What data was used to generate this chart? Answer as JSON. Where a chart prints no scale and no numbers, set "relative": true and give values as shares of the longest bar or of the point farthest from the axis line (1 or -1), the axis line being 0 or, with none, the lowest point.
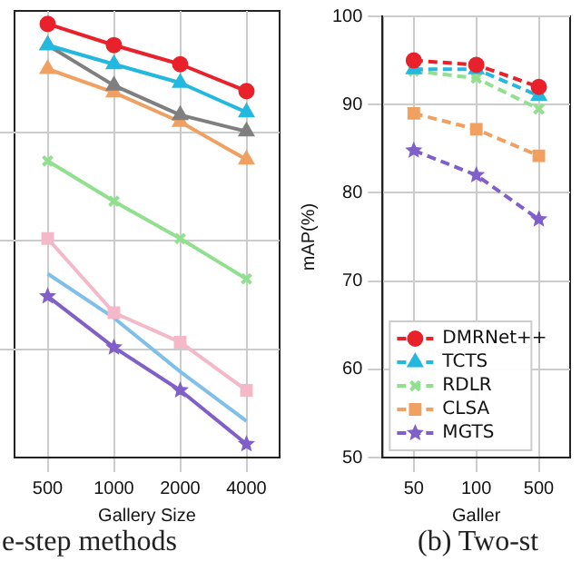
{
  "chart_data": [
    {
      "type": "line",
      "relative": true,
      "xlabel": "Gallery Size",
      "categories": [
        "500",
        "1000",
        "2000",
        "4000"
      ],
      "grid": true,
      "legend": false,
      "line_style": "solid",
      "annotations": [
        "e-step methods"
      ],
      "series": [
        {
          "color": "#e8212a",
          "marker": "circle",
          "values": [
            1,
            0.951,
            0.907,
            0.845
          ]
        },
        {
          "color": "#22b8e0",
          "marker": "triangle",
          "values": [
            0.951,
            0.907,
            0.864,
            0.796
          ]
        },
        {
          "color": "#7f7f7f",
          "marker": "triangle",
          "values": [
            0.951,
            0.858,
            0.79,
            0.752
          ]
        },
        {
          "color": "#f0a060",
          "marker": "triangle",
          "values": [
            0.896,
            0.842,
            0.774,
            0.687
          ]
        },
        {
          "color": "#90e090",
          "marker": "cross",
          "values": [
            0.684,
            0.591,
            0.505,
            0.412
          ]
        },
        {
          "color": "#f5b8c8",
          "marker": "square",
          "values": [
            0.505,
            0.334,
            0.266,
            0.155
          ]
        },
        {
          "color": "#80c0e8",
          "marker": "none",
          "values": [
            0.424,
            0.322,
            0.198,
            0.084
          ]
        },
        {
          "color": "#8060c8",
          "marker": "star",
          "values": [
            0.372,
            0.254,
            0.155,
            0.031
          ]
        }
      ]
    },
    {
      "type": "line",
      "ylabel": "mAP(%)",
      "xlabel": "Galler",
      "categories": [
        "50",
        "100",
        "500"
      ],
      "ylim": [
        50,
        100
      ],
      "yticks": [
        50,
        60,
        70,
        80,
        90,
        100
      ],
      "grid": true,
      "legend": "bottom left",
      "line_style": "dashed",
      "annotations": [
        "(b) Two-st"
      ],
      "series": [
        {
          "name": "DMRNet++",
          "color": "#e8212a",
          "marker": "circle",
          "values": [
            95,
            94.5,
            92
          ]
        },
        {
          "name": "TCTS",
          "color": "#22b8e0",
          "marker": "triangle",
          "values": [
            94,
            94,
            91
          ]
        },
        {
          "name": "RDLR",
          "color": "#90e090",
          "marker": "cross",
          "values": [
            93.8,
            93,
            89.5
          ]
        },
        {
          "name": "CLSA",
          "color": "#f0a060",
          "marker": "square",
          "values": [
            89,
            87.2,
            84.2
          ]
        },
        {
          "name": "MGTS",
          "color": "#8060c8",
          "marker": "star",
          "values": [
            84.8,
            82,
            77
          ]
        }
      ]
    }
  ]
}
